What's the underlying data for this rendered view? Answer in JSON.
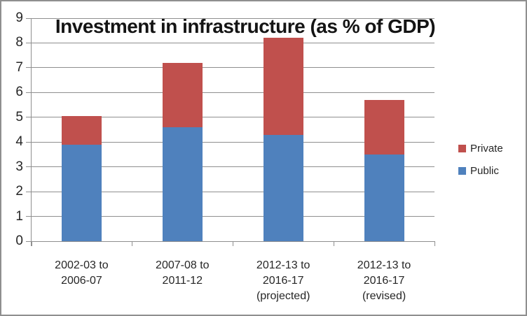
{
  "chart_data": {
    "type": "bar",
    "stacked": true,
    "title": "Investment in infrastructure (as % of GDP)",
    "categories": [
      "2002-03 to\n2006-07",
      "2007-08 to\n2011-12",
      "2012-13 to\n2016-17\n(projected)",
      "2012-13 to\n2016-17\n(revised)"
    ],
    "series": [
      {
        "name": "Public",
        "color": "#4F81BD",
        "values": [
          3.9,
          4.6,
          4.3,
          3.5
        ]
      },
      {
        "name": "Private",
        "color": "#C0504D",
        "values": [
          1.15,
          2.6,
          3.9,
          2.2
        ]
      }
    ],
    "stack_totals": [
      5.05,
      7.2,
      8.2,
      5.7
    ],
    "ylim": [
      0,
      9
    ],
    "yticks": [
      0,
      1,
      2,
      3,
      4,
      5,
      6,
      7,
      8,
      9
    ],
    "grid": true,
    "legend_position": "right",
    "legend": [
      {
        "label": "Private",
        "color": "#C0504D"
      },
      {
        "label": "Public",
        "color": "#4F81BD"
      }
    ]
  },
  "colors": {
    "frame_border": "#8f8f8f",
    "gridline": "#8f8f8f",
    "axis": "#8f8f8f",
    "tick_label": "#262626",
    "title": "#141414",
    "background": "#ffffff"
  }
}
